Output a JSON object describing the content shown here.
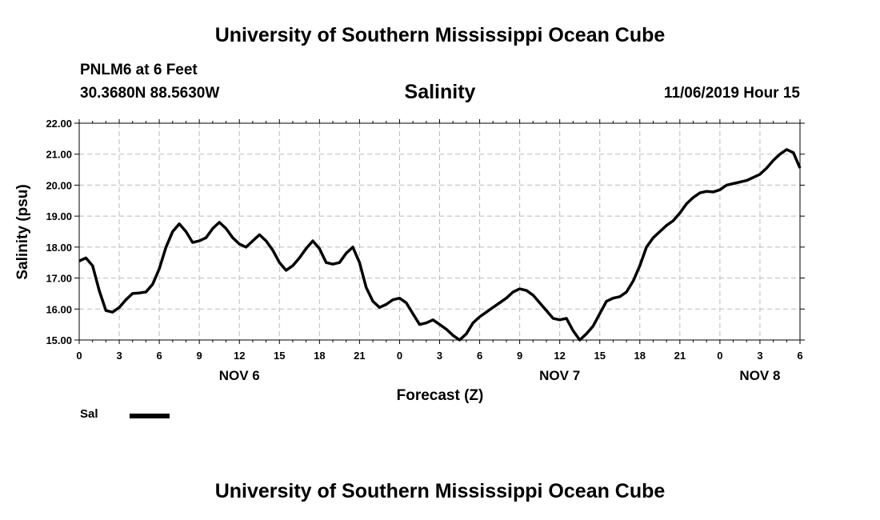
{
  "header": {
    "top_title": "University of Southern Mississippi Ocean Cube",
    "bottom_title": "University of Southern Mississippi Ocean Cube",
    "station": "PNLM6 at 6 Feet",
    "coords": "30.3680N 88.5630W",
    "timestamp": "11/06/2019 Hour 15"
  },
  "colors": {
    "line": "#000000",
    "grid": "#bbbbbb"
  },
  "chart_data": {
    "type": "line",
    "title": "Salinity",
    "xlabel": "Forecast (Z)",
    "ylabel": "Salinity (psu)",
    "ylim": [
      15,
      22
    ],
    "xlim": [
      0,
      54
    ],
    "y_ticks": [
      "15.00",
      "16.00",
      "17.00",
      "18.00",
      "19.00",
      "20.00",
      "21.00",
      "22.00"
    ],
    "x_tick_hours": [
      0,
      3,
      6,
      9,
      12,
      15,
      18,
      21,
      24,
      27,
      30,
      33,
      36,
      39,
      42,
      45,
      48,
      51,
      54
    ],
    "x_tick_labels": [
      "0",
      "3",
      "6",
      "9",
      "12",
      "15",
      "18",
      "21",
      "0",
      "3",
      "6",
      "9",
      "12",
      "15",
      "18",
      "21",
      "0",
      "3",
      "6"
    ],
    "day_labels": [
      {
        "hour": 12,
        "label": "NOV 6"
      },
      {
        "hour": 36,
        "label": "NOV 7"
      },
      {
        "hour": 51,
        "label": "NOV 8"
      }
    ],
    "grid": true,
    "series": [
      {
        "name": "Sal",
        "x": [
          0,
          0.5,
          1,
          1.5,
          2,
          2.5,
          3,
          3.5,
          4,
          4.5,
          5,
          5.5,
          6,
          6.5,
          7,
          7.5,
          8,
          8.5,
          9,
          9.5,
          10,
          10.5,
          11,
          11.5,
          12,
          12.5,
          13,
          13.5,
          14,
          14.5,
          15,
          15.5,
          16,
          16.5,
          17,
          17.5,
          18,
          18.5,
          19,
          19.5,
          20,
          20.5,
          21,
          21.5,
          22,
          22.5,
          23,
          23.5,
          24,
          24.5,
          25,
          25.5,
          26,
          26.5,
          27,
          27.5,
          28,
          28.5,
          29,
          29.5,
          30,
          30.5,
          31,
          31.5,
          32,
          32.5,
          33,
          33.5,
          34,
          34.5,
          35,
          35.5,
          36,
          36.5,
          37,
          37.5,
          38,
          38.5,
          39,
          39.5,
          40,
          40.5,
          41,
          41.5,
          42,
          42.5,
          43,
          43.5,
          44,
          44.5,
          45,
          45.5,
          46,
          46.5,
          47,
          47.5,
          48,
          48.5,
          49,
          49.5,
          50,
          50.5,
          51,
          51.5,
          52,
          52.5,
          53,
          53.5,
          54
        ],
        "values": [
          17.55,
          17.65,
          17.4,
          16.6,
          15.95,
          15.9,
          16.05,
          16.3,
          16.5,
          16.52,
          16.55,
          16.8,
          17.3,
          18.0,
          18.5,
          18.75,
          18.5,
          18.15,
          18.2,
          18.3,
          18.6,
          18.8,
          18.6,
          18.3,
          18.1,
          18.0,
          18.2,
          18.4,
          18.2,
          17.9,
          17.5,
          17.25,
          17.4,
          17.65,
          17.95,
          18.2,
          17.95,
          17.5,
          17.45,
          17.5,
          17.8,
          18.0,
          17.5,
          16.7,
          16.25,
          16.05,
          16.15,
          16.3,
          16.35,
          16.2,
          15.85,
          15.5,
          15.55,
          15.65,
          15.5,
          15.35,
          15.15,
          15.0,
          15.2,
          15.55,
          15.75,
          15.9,
          16.05,
          16.2,
          16.35,
          16.55,
          16.65,
          16.6,
          16.45,
          16.2,
          15.95,
          15.7,
          15.65,
          15.7,
          15.3,
          15.0,
          15.2,
          15.45,
          15.85,
          16.25,
          16.35,
          16.4,
          16.55,
          16.9,
          17.4,
          18.0,
          18.3,
          18.5,
          18.7,
          18.85,
          19.1,
          19.4,
          19.6,
          19.75,
          19.8,
          19.78,
          19.85,
          20.0,
          20.05,
          20.1,
          20.15,
          20.25,
          20.35,
          20.55,
          20.8,
          21.0,
          21.15,
          21.05,
          20.55
        ]
      }
    ]
  }
}
